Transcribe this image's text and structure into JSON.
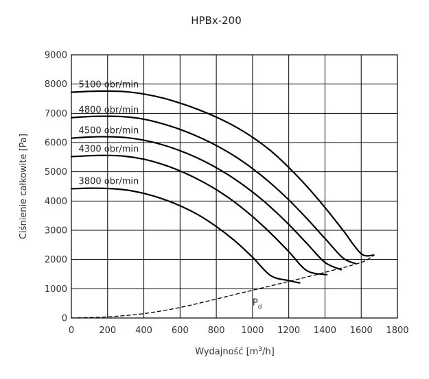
{
  "chart_data": {
    "type": "line",
    "title": "HPBx-200",
    "xlabel_main": "Wydajność [m",
    "xlabel_sup": "3",
    "xlabel_end": "/h]",
    "ylabel": "Ciśnienie całkowite [Pa]",
    "xlim": [
      0,
      1800
    ],
    "ylim": [
      0,
      9000
    ],
    "xticks": [
      0,
      200,
      400,
      600,
      800,
      1000,
      1200,
      1400,
      1600,
      1800
    ],
    "yticks": [
      0,
      1000,
      2000,
      3000,
      4000,
      5000,
      6000,
      7000,
      8000,
      9000
    ],
    "grid": true,
    "series": [
      {
        "name": "5100 obr/min",
        "x": [
          0,
          100,
          200,
          300,
          400,
          500,
          600,
          700,
          800,
          900,
          1000,
          1100,
          1200,
          1300,
          1400,
          1500,
          1600,
          1670
        ],
        "y": [
          7720,
          7750,
          7760,
          7740,
          7660,
          7530,
          7350,
          7130,
          6870,
          6560,
          6180,
          5720,
          5150,
          4500,
          3780,
          3000,
          2200,
          2150
        ]
      },
      {
        "name": "4800 obr/min",
        "x": [
          0,
          100,
          200,
          300,
          400,
          500,
          600,
          700,
          800,
          900,
          1000,
          1100,
          1200,
          1300,
          1400,
          1500,
          1570
        ],
        "y": [
          6850,
          6890,
          6900,
          6880,
          6800,
          6650,
          6450,
          6200,
          5900,
          5540,
          5110,
          4610,
          4040,
          3400,
          2720,
          2050,
          1860
        ]
      },
      {
        "name": "4500 obr/min",
        "x": [
          0,
          100,
          200,
          300,
          400,
          500,
          600,
          700,
          800,
          900,
          1000,
          1100,
          1200,
          1300,
          1400,
          1490
        ],
        "y": [
          6150,
          6190,
          6200,
          6170,
          6080,
          5930,
          5720,
          5460,
          5140,
          4760,
          4310,
          3790,
          3200,
          2550,
          1900,
          1650
        ]
      },
      {
        "name": "4300 obr/min",
        "x": [
          0,
          100,
          200,
          300,
          400,
          500,
          600,
          700,
          800,
          900,
          1000,
          1100,
          1200,
          1300,
          1410
        ],
        "y": [
          5520,
          5550,
          5560,
          5530,
          5430,
          5260,
          5030,
          4740,
          4390,
          3970,
          3470,
          2900,
          2270,
          1620,
          1480
        ]
      },
      {
        "name": "3800 obr/min",
        "x": [
          0,
          100,
          200,
          300,
          400,
          500,
          600,
          700,
          800,
          900,
          1000,
          1100,
          1200,
          1260
        ],
        "y": [
          4420,
          4440,
          4430,
          4380,
          4260,
          4080,
          3840,
          3530,
          3130,
          2650,
          2080,
          1450,
          1280,
          1200
        ]
      },
      {
        "name": "Pd",
        "label_main": "P",
        "label_sub": "d",
        "style": "dashed",
        "x": [
          0,
          200,
          400,
          600,
          800,
          1000,
          1200,
          1400,
          1600,
          1670
        ],
        "y": [
          0,
          40,
          150,
          360,
          650,
          950,
          1250,
          1560,
          1900,
          2150
        ]
      }
    ]
  }
}
